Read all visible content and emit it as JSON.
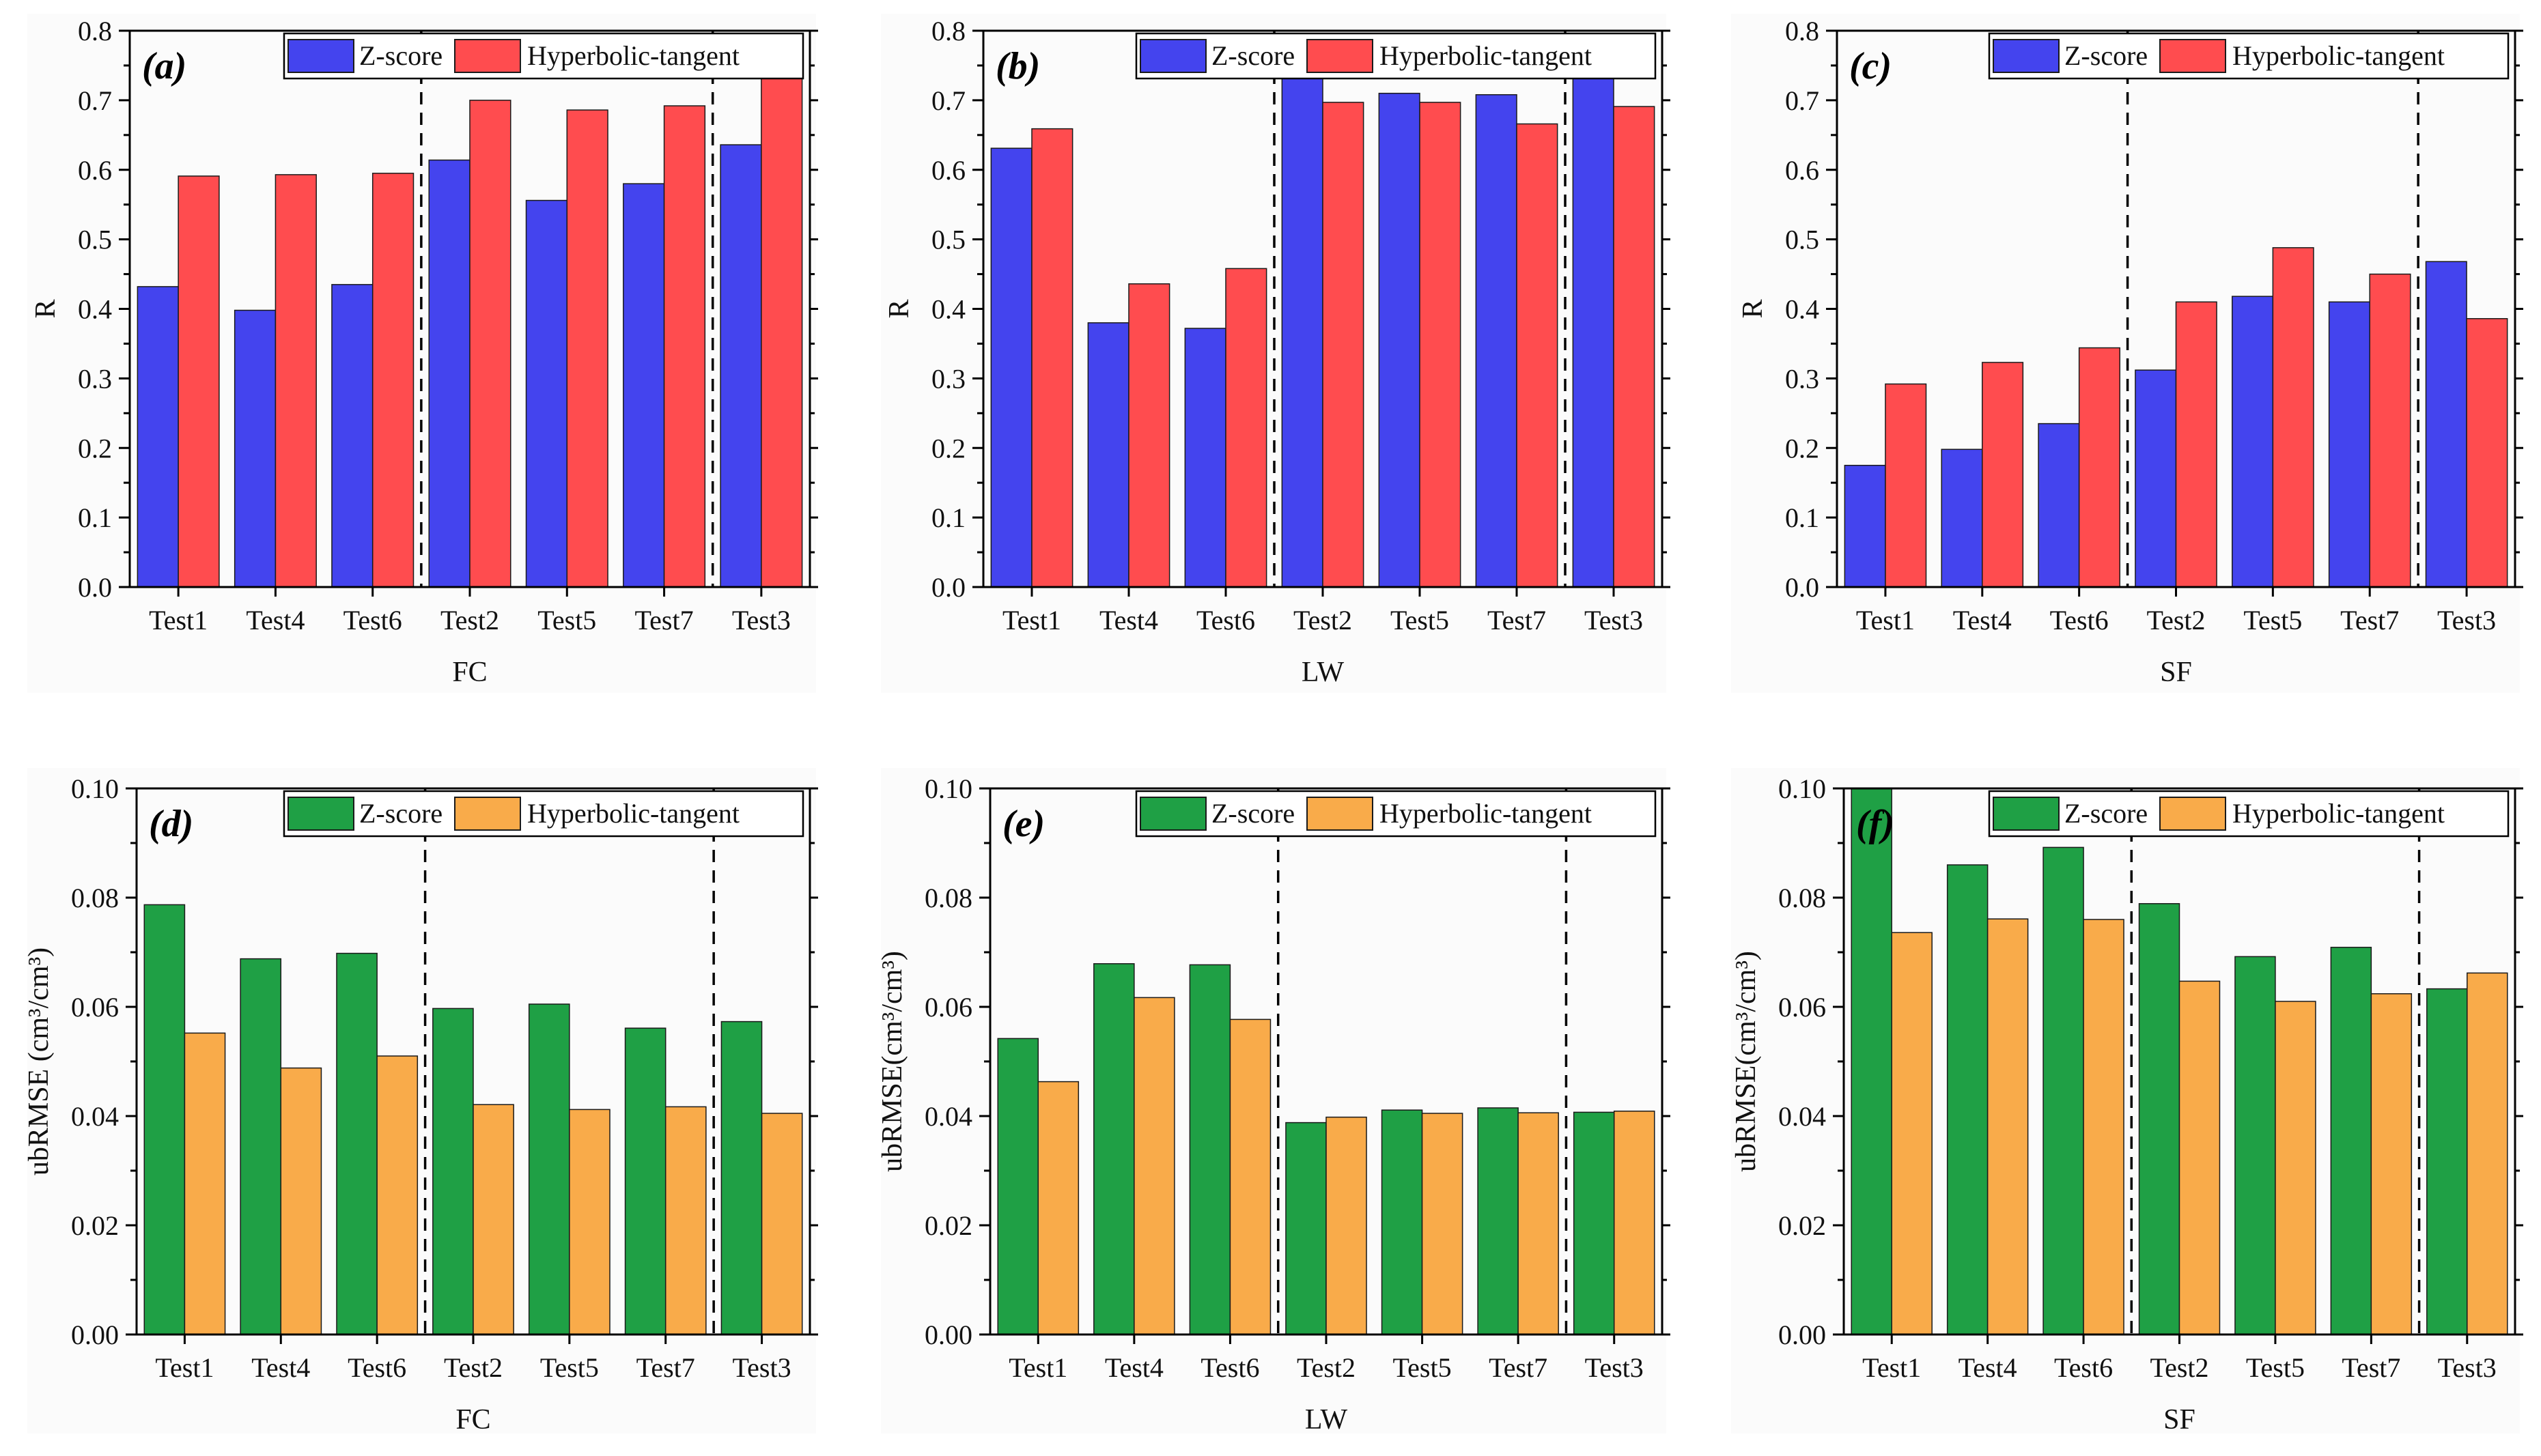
{
  "chart_data": [
    {
      "id": "a",
      "label": "(a)",
      "type": "bar",
      "xlabel": "FC",
      "ylabel": "R",
      "ylim": [
        0,
        0.8
      ],
      "yticks": [
        "0.0",
        "0.1",
        "0.2",
        "0.3",
        "0.4",
        "0.5",
        "0.6",
        "0.7",
        "0.8"
      ],
      "categories": [
        "Test1",
        "Test4",
        "Test6",
        "Test2",
        "Test5",
        "Test7",
        "Test3"
      ],
      "dividers_after": [
        3,
        6
      ],
      "series": [
        {
          "name": "Z-score",
          "color": "#4444ee",
          "values": [
            0.432,
            0.398,
            0.435,
            0.614,
            0.556,
            0.58,
            0.636
          ]
        },
        {
          "name": "Hyperbolic-tangent",
          "color": "#ff4c4f",
          "values": [
            0.591,
            0.593,
            0.595,
            0.7,
            0.686,
            0.692,
            0.745
          ]
        }
      ]
    },
    {
      "id": "b",
      "label": "(b)",
      "type": "bar",
      "xlabel": "LW",
      "ylabel": "R",
      "ylim": [
        0,
        0.8
      ],
      "yticks": [
        "0.0",
        "0.1",
        "0.2",
        "0.3",
        "0.4",
        "0.5",
        "0.6",
        "0.7",
        "0.8"
      ],
      "categories": [
        "Test1",
        "Test4",
        "Test6",
        "Test2",
        "Test5",
        "Test7",
        "Test3"
      ],
      "dividers_after": [
        3,
        6
      ],
      "series": [
        {
          "name": "Z-score",
          "color": "#4444ee",
          "values": [
            0.631,
            0.38,
            0.372,
            0.732,
            0.71,
            0.708,
            0.752
          ]
        },
        {
          "name": "Hyperbolic-tangent",
          "color": "#ff4c4f",
          "values": [
            0.659,
            0.436,
            0.458,
            0.697,
            0.697,
            0.666,
            0.691
          ]
        }
      ]
    },
    {
      "id": "c",
      "label": "(c)",
      "type": "bar",
      "xlabel": "SF",
      "ylabel": "R",
      "ylim": [
        0,
        0.8
      ],
      "yticks": [
        "0.0",
        "0.1",
        "0.2",
        "0.3",
        "0.4",
        "0.5",
        "0.6",
        "0.7",
        "0.8"
      ],
      "categories": [
        "Test1",
        "Test4",
        "Test6",
        "Test2",
        "Test5",
        "Test7",
        "Test3"
      ],
      "dividers_after": [
        3,
        6
      ],
      "series": [
        {
          "name": "Z-score",
          "color": "#4444ee",
          "values": [
            0.175,
            0.198,
            0.235,
            0.312,
            0.418,
            0.41,
            0.468
          ]
        },
        {
          "name": "Hyperbolic-tangent",
          "color": "#ff4c4f",
          "values": [
            0.292,
            0.323,
            0.344,
            0.41,
            0.488,
            0.45,
            0.386
          ]
        }
      ]
    },
    {
      "id": "d",
      "label": "(d)",
      "type": "bar",
      "xlabel": "FC",
      "ylabel": "ubRMSE (cm³/cm³)",
      "ylim": [
        0,
        0.1
      ],
      "yticks": [
        "0.00",
        "0.02",
        "0.04",
        "0.06",
        "0.08",
        "0.10"
      ],
      "categories": [
        "Test1",
        "Test4",
        "Test6",
        "Test2",
        "Test5",
        "Test7",
        "Test3"
      ],
      "dividers_after": [
        3,
        6
      ],
      "series": [
        {
          "name": "Z-score",
          "color": "#1fa045",
          "values": [
            0.0787,
            0.0688,
            0.0698,
            0.0597,
            0.0605,
            0.0561,
            0.0573
          ]
        },
        {
          "name": "Hyperbolic-tangent",
          "color": "#f9ab4a",
          "values": [
            0.0552,
            0.0488,
            0.051,
            0.0421,
            0.0412,
            0.0417,
            0.0405
          ]
        }
      ]
    },
    {
      "id": "e",
      "label": "(e)",
      "type": "bar",
      "xlabel": "LW",
      "ylabel": "ubRMSE(cm³/cm³)",
      "ylim": [
        0,
        0.1
      ],
      "yticks": [
        "0.00",
        "0.02",
        "0.04",
        "0.06",
        "0.08",
        "0.10"
      ],
      "categories": [
        "Test1",
        "Test4",
        "Test6",
        "Test2",
        "Test5",
        "Test7",
        "Test3"
      ],
      "dividers_after": [
        3,
        6
      ],
      "series": [
        {
          "name": "Z-score",
          "color": "#1fa045",
          "values": [
            0.0542,
            0.0679,
            0.0677,
            0.0388,
            0.0411,
            0.0415,
            0.0407
          ]
        },
        {
          "name": "Hyperbolic-tangent",
          "color": "#f9ab4a",
          "values": [
            0.0463,
            0.0617,
            0.0577,
            0.0398,
            0.0405,
            0.0406,
            0.0409
          ]
        }
      ]
    },
    {
      "id": "f",
      "label": "(f)",
      "type": "bar",
      "xlabel": "SF",
      "ylabel": "ubRMSE(cm³/cm³)",
      "ylim": [
        0,
        0.1
      ],
      "yticks": [
        "0.00",
        "0.02",
        "0.04",
        "0.06",
        "0.08",
        "0.10"
      ],
      "categories": [
        "Test1",
        "Test4",
        "Test6",
        "Test2",
        "Test5",
        "Test7",
        "Test3"
      ],
      "dividers_after": [
        3,
        6
      ],
      "series": [
        {
          "name": "Z-score",
          "color": "#1fa045",
          "values": [
            0.1,
            0.086,
            0.0892,
            0.0789,
            0.0692,
            0.0709,
            0.0633
          ]
        },
        {
          "name": "Hyperbolic-tangent",
          "color": "#f9ab4a",
          "values": [
            0.0736,
            0.0761,
            0.076,
            0.0647,
            0.061,
            0.0624,
            0.0662
          ]
        }
      ]
    }
  ]
}
